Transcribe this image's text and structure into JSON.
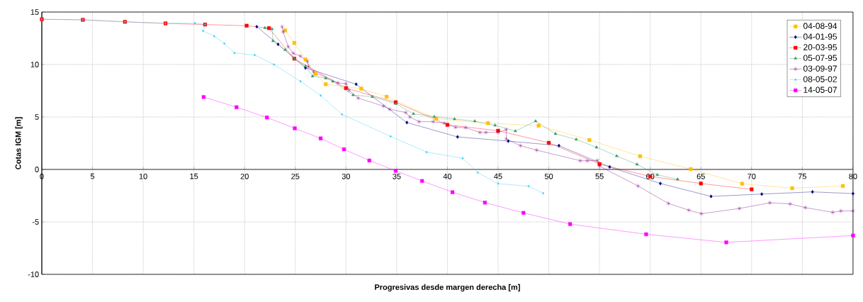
{
  "chart_data": {
    "type": "line",
    "xlabel": "Progresivas desde margen derecha [m]",
    "ylabel": "Cotas IGM [m]",
    "xlim": [
      0,
      80
    ],
    "xticks": [
      0,
      5,
      10,
      15,
      20,
      25,
      30,
      35,
      40,
      45,
      50,
      55,
      60,
      65,
      70,
      75,
      80
    ],
    "ylim": [
      -10,
      15
    ],
    "yticks": [
      -10,
      -5,
      0,
      5,
      10,
      15
    ],
    "grid": true,
    "legend": "top right",
    "line_style": "solid",
    "series": [
      {
        "name": "04-08-94",
        "color": "#ffc000",
        "marker": "square",
        "x": [
          24.0,
          24.9,
          26.0,
          27.0,
          28.0,
          31.5,
          34.0,
          38.9,
          44.0,
          49.0,
          54.0,
          59.0,
          64.0,
          69.06,
          74.0,
          79.0
        ],
        "values": [
          13.25,
          12.06,
          10.48,
          9.1,
          8.12,
          7.7,
          6.93,
          4.84,
          4.41,
          4.17,
          2.8,
          1.26,
          0.03,
          -1.36,
          -1.79,
          -1.58
        ]
      },
      {
        "name": "04-01-95",
        "color": "#000080",
        "marker": "diamond",
        "x": [
          21.2,
          23.3,
          26.0,
          31.0,
          36.0,
          41.0,
          46.0,
          51.0,
          56.0,
          61.0,
          66.0,
          71.0,
          76.0,
          80
        ],
        "values": [
          13.6,
          11.93,
          9.68,
          8.12,
          4.47,
          3.1,
          2.7,
          2.27,
          0.24,
          -1.34,
          -2.57,
          -2.35,
          -2.14,
          -2.3
        ]
      },
      {
        "name": "20-03-95",
        "color": "#ff0000",
        "marker": "square",
        "x": [
          0,
          4.05,
          8.2,
          12.2,
          16.1,
          20.2,
          22.4,
          24.9,
          30.0,
          34.9,
          40.0,
          45.0,
          50.0,
          55.0,
          60.0,
          65.0,
          70.0
        ],
        "values": [
          14.31,
          14.26,
          14.07,
          13.92,
          13.81,
          13.7,
          13.47,
          10.56,
          7.75,
          6.4,
          4.25,
          3.69,
          2.54,
          0.51,
          -0.67,
          -1.34,
          -1.9
        ]
      },
      {
        "name": "05-07-95",
        "color": "#339966",
        "marker": "triangle",
        "x": [
          22.0,
          22.7,
          22.8,
          24.0,
          24.9,
          26.0,
          26.7,
          28.0,
          28.7,
          30.7,
          32.6,
          34.9,
          36.65,
          38.7,
          40.7,
          42.7,
          44.7,
          46.7,
          48.7,
          50.66,
          52.7,
          54.7,
          56.7,
          58.7,
          60.7,
          62.7
        ],
        "values": [
          13.49,
          13.39,
          12.25,
          11.4,
          10.53,
          9.84,
          8.89,
          8.7,
          8.39,
          7.09,
          6.93,
          6.27,
          5.3,
          5.03,
          4.81,
          4.6,
          4.2,
          3.66,
          4.6,
          3.4,
          2.86,
          2.11,
          1.28,
          0.48,
          -0.51,
          -0.94
        ]
      },
      {
        "name": "03-09-97",
        "color": "#800080",
        "marker": "cross",
        "x": [
          23.7,
          23.8,
          24.3,
          24.8,
          25.5,
          26.2,
          26.3,
          26.8,
          29.2,
          30.0,
          30.3,
          31.2,
          33.7,
          34.3,
          35.9,
          36.3,
          37.2,
          38.6,
          39.7,
          40.8,
          41.8,
          43.2,
          43.8,
          45.0,
          45.8,
          45.8,
          47.2,
          48.8,
          53.1,
          53.8,
          54.8,
          55.0,
          58.8,
          61.8,
          63.8,
          65.05,
          68.8,
          71.8,
          73.8,
          75.3,
          78.0,
          78.8,
          80
        ],
        "values": [
          13.6,
          13.12,
          11.7,
          11.06,
          10.8,
          10.3,
          9.8,
          9.29,
          8.25,
          8.17,
          7.54,
          6.8,
          6.03,
          5.74,
          5.42,
          5.0,
          4.55,
          4.55,
          4.41,
          4.01,
          3.98,
          3.53,
          3.53,
          3.53,
          3.8,
          2.9,
          2.27,
          1.84,
          0.83,
          0.83,
          0.86,
          0.32,
          -1.58,
          -3.24,
          -3.88,
          -4.22,
          -3.72,
          -3.18,
          -3.29,
          -3.64,
          -4.09,
          -3.96,
          -3.96
        ]
      },
      {
        "name": "08-05-02",
        "color": "#33ccff",
        "marker": "diamond",
        "x": [
          0,
          4.05,
          8.2,
          12.2,
          15.1,
          16.1,
          15.9,
          17.0,
          18.0,
          19.0,
          21.0,
          22.9,
          25.5,
          27.5,
          29.6,
          34.4,
          37.95,
          41.5,
          43.0,
          45.0,
          48.0,
          49.45
        ],
        "values": [
          14.31,
          14.26,
          14.07,
          13.92,
          13.94,
          13.81,
          13.2,
          12.7,
          12.0,
          11.1,
          10.9,
          10.0,
          8.4,
          7.05,
          5.25,
          3.15,
          1.65,
          1.07,
          -0.3,
          -1.35,
          -1.6,
          -2.27
        ]
      },
      {
        "name": "14-05-07",
        "color": "#ff00ff",
        "marker": "square",
        "x": [
          15.96,
          19.2,
          22.2,
          24.95,
          27.5,
          29.8,
          32.3,
          34.9,
          37.5,
          40.5,
          43.7,
          47.5,
          52.1,
          59.6,
          67.5,
          80
        ],
        "values": [
          6.9,
          5.93,
          4.95,
          3.92,
          2.96,
          1.92,
          0.85,
          -0.13,
          -1.1,
          -2.17,
          -3.16,
          -4.14,
          -5.21,
          -6.18,
          -6.95,
          -6.3
        ]
      }
    ]
  }
}
